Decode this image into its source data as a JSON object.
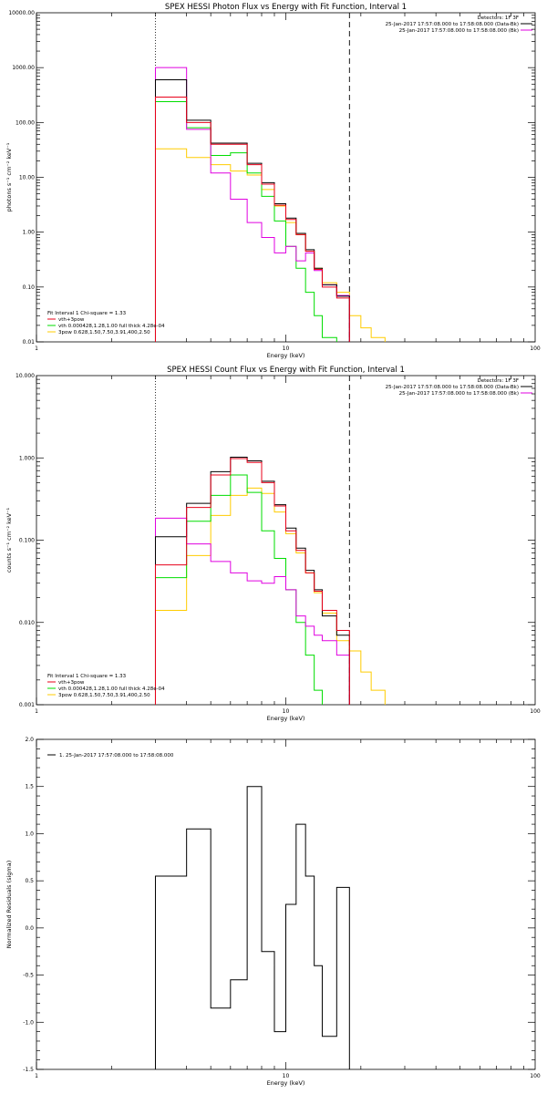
{
  "colors": {
    "data": "#000000",
    "total": "#e8001a",
    "comp1": "#00dd00",
    "comp2": "#ffcc00",
    "background": "#e000e0"
  },
  "chart_data": [
    {
      "type": "line",
      "title": "SPEX HESSI Photon Flux vs Energy with Fit Function, Interval 1",
      "xlabel": "Energy (keV)",
      "ylabel": "photons s⁻¹ cm⁻² keV⁻¹",
      "xscale": "log",
      "yscale": "log",
      "xlim": [
        1,
        100
      ],
      "ylim": [
        0.01,
        10000
      ],
      "xticks": [
        "1",
        "10",
        "100"
      ],
      "yticks": [
        "0.01",
        "0.10",
        "1.00",
        "10.00",
        "100.00",
        "1000.00",
        "10000.00"
      ],
      "grid": false,
      "header": [
        "Detectors: 1F 3F",
        "25-Jan-2017 17:57:08.000 to 17:58:08.000 (Data-Bk)",
        "25-Jan-2017 17:57:08.000 to 17:58:08.000 (Bk)"
      ],
      "legend_lines": [
        "Fit Interval  1    Chi-square = 1.33",
        "vth+3pow",
        "vth 0.000428,1.28,1.00  full thick 4.28e-04",
        "3pow 0.628,1.50,7.50,3.91,400,2.50"
      ],
      "legend_position": "bottom-left",
      "vlines": [
        3.0,
        18.0
      ],
      "edges": [
        3.0,
        4.0,
        5.0,
        6.0,
        7.0,
        8.0,
        9.0,
        10.0,
        11.0,
        12.0,
        13.0,
        14.0,
        16.0,
        18.0,
        20.0,
        22.0,
        25.0
      ],
      "series": [
        {
          "name": "Data-Bk",
          "color_key": "data",
          "values": [
            600,
            110,
            42,
            42,
            18,
            8,
            3.3,
            1.8,
            0.95,
            0.48,
            0.22,
            0.11,
            0.068
          ]
        },
        {
          "name": "vth+3pow",
          "color_key": "total",
          "values": [
            290,
            100,
            40,
            40,
            17,
            7.5,
            3.1,
            1.7,
            0.9,
            0.45,
            0.21,
            0.1,
            0.063
          ]
        },
        {
          "name": "vth",
          "color_key": "comp1",
          "values": [
            240,
            80,
            25,
            28,
            12,
            4.5,
            1.6,
            0.55,
            0.22,
            0.08,
            0.03,
            0.012
          ]
        },
        {
          "name": "3pow",
          "color_key": "comp2",
          "values": [
            33,
            23,
            17,
            13,
            11,
            6,
            3,
            1.5,
            0.9,
            0.45,
            0.22,
            0.12,
            0.08,
            0.03,
            0.018,
            0.012
          ]
        },
        {
          "name": "Bk",
          "color_key": "background",
          "values": [
            1000,
            75,
            12,
            4,
            1.5,
            0.8,
            0.42,
            0.55,
            0.3,
            0.42,
            0.2,
            0.11,
            0.07
          ]
        }
      ]
    },
    {
      "type": "line",
      "title": "SPEX HESSI Count Flux vs Energy with Fit Function, Interval 1",
      "xlabel": "Energy (keV)",
      "ylabel": "counts s⁻¹ cm⁻² keV⁻¹",
      "xscale": "log",
      "yscale": "log",
      "xlim": [
        1,
        100
      ],
      "ylim": [
        0.001,
        10
      ],
      "xticks": [
        "1",
        "10",
        "100"
      ],
      "yticks": [
        "0.001",
        "0.010",
        "0.100",
        "1.000",
        "10.000"
      ],
      "grid": false,
      "header": [
        "Detectors: 1F 3F",
        "25-Jan-2017 17:57:08.000 to 17:58:08.000 (Data-Bk)",
        "25-Jan-2017 17:57:08.000 to 17:58:08.000 (Bk)"
      ],
      "legend_lines": [
        "Fit Interval  1    Chi-square = 1.33",
        "vth+3pow",
        "vth 0.000428,1.28,1.00  full thick 4.28e-04",
        "3pow 0.628,1.50,7.50,3.91,400,2.50"
      ],
      "legend_position": "bottom-left",
      "vlines": [
        3.0,
        18.0
      ],
      "edges": [
        3.0,
        4.0,
        5.0,
        6.0,
        7.0,
        8.0,
        9.0,
        10.0,
        11.0,
        12.0,
        13.0,
        14.0,
        16.0,
        18.0,
        20.0,
        22.0,
        25.0
      ],
      "series": [
        {
          "name": "Data-Bk",
          "color_key": "data",
          "values": [
            0.11,
            0.28,
            0.68,
            1.02,
            0.92,
            0.52,
            0.27,
            0.14,
            0.08,
            0.043,
            0.025,
            0.012,
            0.007
          ]
        },
        {
          "name": "vth+3pow",
          "color_key": "total",
          "values": [
            0.05,
            0.25,
            0.62,
            0.98,
            0.88,
            0.5,
            0.26,
            0.13,
            0.075,
            0.04,
            0.024,
            0.014,
            0.008
          ]
        },
        {
          "name": "vth",
          "color_key": "comp1",
          "values": [
            0.035,
            0.17,
            0.35,
            0.62,
            0.38,
            0.13,
            0.06,
            0.025,
            0.01,
            0.004,
            0.0015
          ]
        },
        {
          "name": "3pow",
          "color_key": "comp2",
          "values": [
            0.014,
            0.065,
            0.2,
            0.35,
            0.43,
            0.37,
            0.22,
            0.12,
            0.07,
            0.04,
            0.023,
            0.013,
            0.006,
            0.0045,
            0.0025,
            0.0015
          ]
        },
        {
          "name": "Bk",
          "color_key": "background",
          "values": [
            0.185,
            0.09,
            0.055,
            0.04,
            0.032,
            0.03,
            0.036,
            0.025,
            0.012,
            0.009,
            0.007,
            0.006,
            0.004
          ]
        }
      ]
    },
    {
      "type": "line",
      "title": "",
      "xlabel": "Energy (keV)",
      "ylabel": "Normalized Residuals (sigma)",
      "xscale": "log",
      "yscale": "linear",
      "xlim": [
        1,
        100
      ],
      "ylim": [
        -1.5,
        2.0
      ],
      "xticks": [
        "1",
        "10",
        "100"
      ],
      "yticks": [
        "-1.5",
        "-1.0",
        "-0.5",
        "0.0",
        "0.5",
        "1.0",
        "1.5",
        "2.0"
      ],
      "grid": false,
      "legend_lines": [
        "1. 25-Jan-2017 17:57:08.000 to 17:58:08.000"
      ],
      "legend_position": "top-left",
      "edges": [
        3.0,
        4.0,
        5.0,
        6.0,
        7.0,
        8.0,
        9.0,
        10.0,
        11.0,
        12.0,
        13.0,
        14.0,
        16.0,
        18.0
      ],
      "series": [
        {
          "name": "residuals",
          "color_key": "data",
          "values": [
            0.55,
            1.05,
            -0.85,
            -0.55,
            1.5,
            -0.25,
            -1.1,
            0.25,
            1.1,
            0.55,
            -0.4,
            -1.15,
            0.43
          ]
        }
      ]
    }
  ]
}
